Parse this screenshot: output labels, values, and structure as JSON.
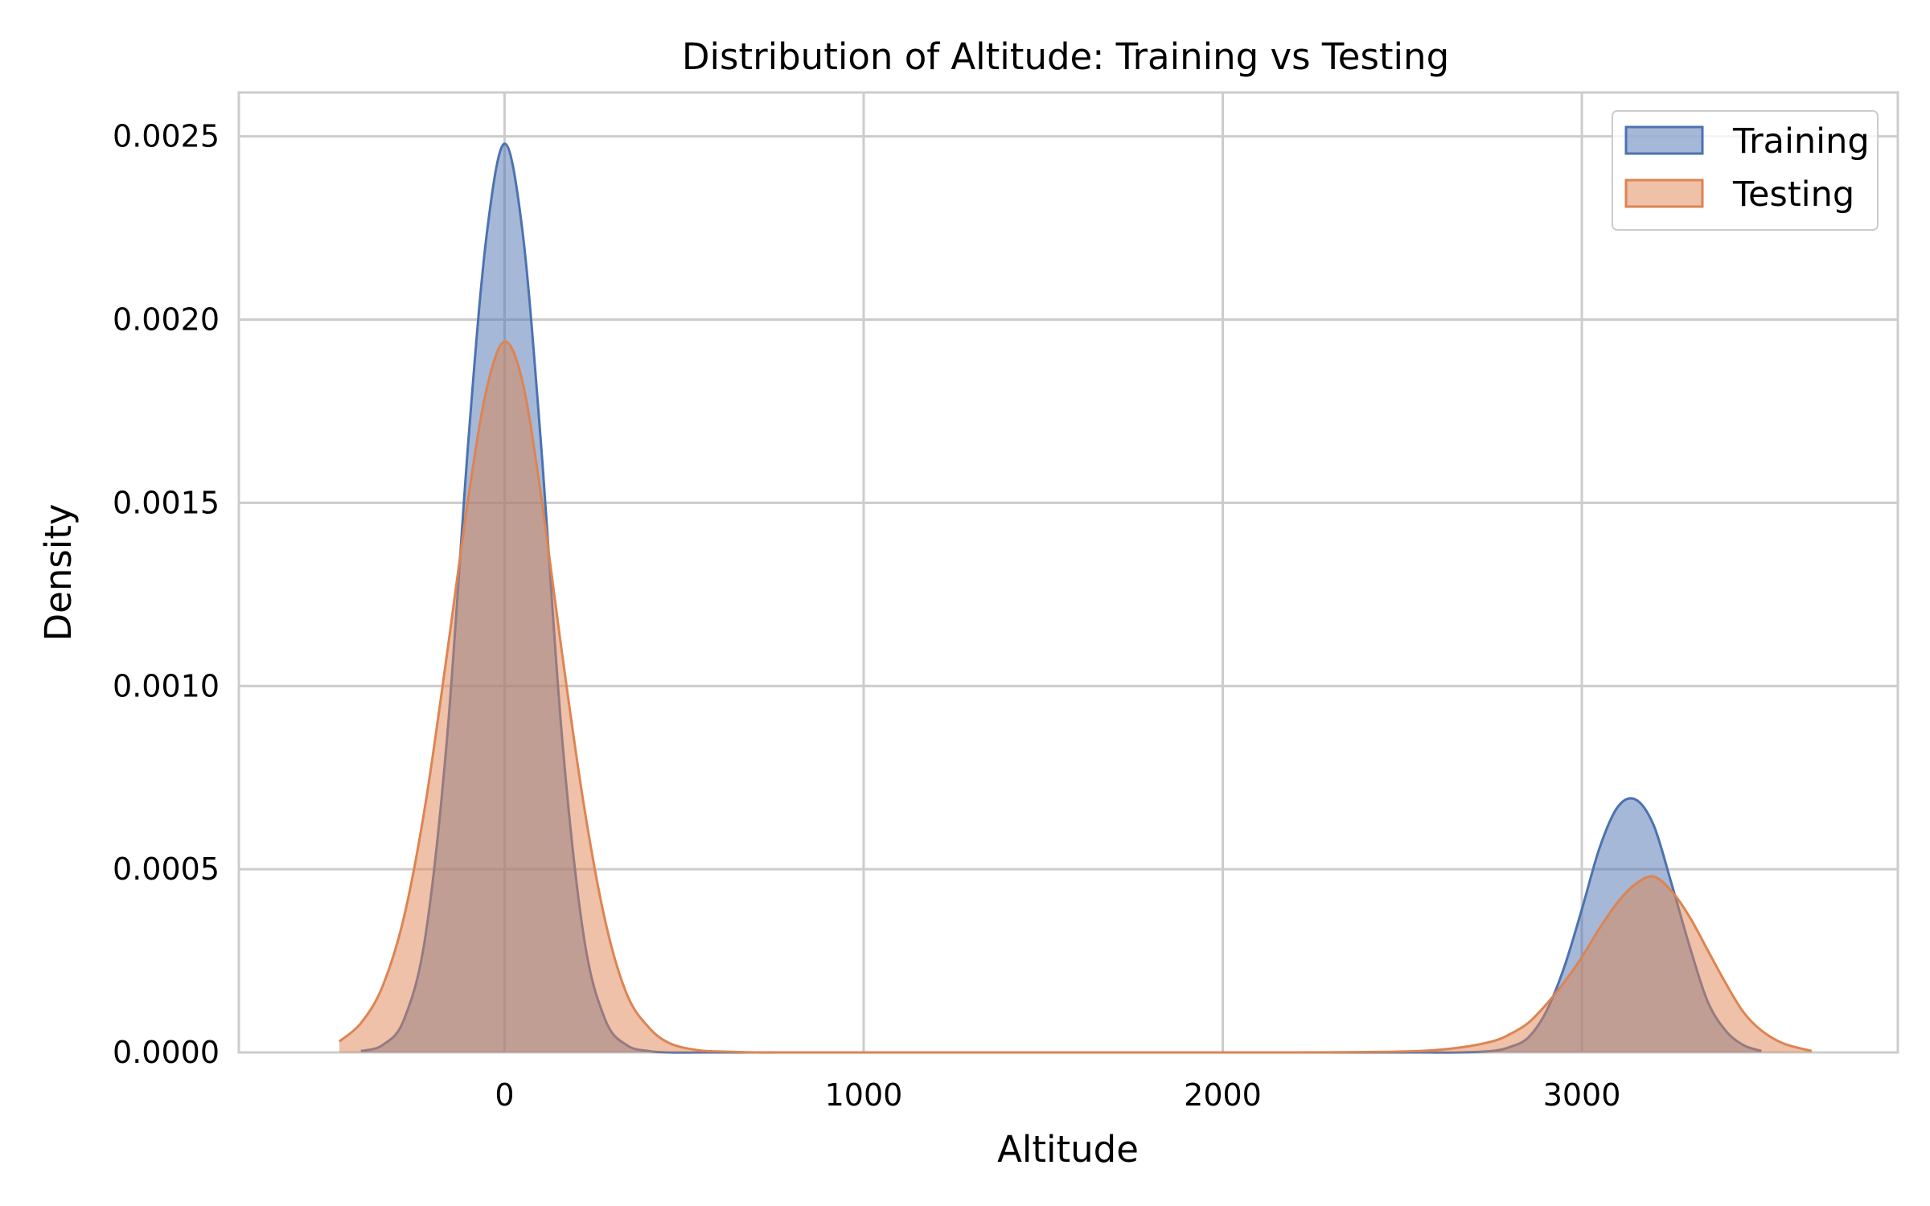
{
  "chart_data": {
    "type": "area",
    "title": "Distribution of Altitude: Training vs Testing",
    "xlabel": "Altitude",
    "ylabel": "Density",
    "xlim": [
      -740,
      3880
    ],
    "ylim": [
      0,
      0.00262
    ],
    "x_ticks": [
      {
        "value": 0,
        "label": "0"
      },
      {
        "value": 1000,
        "label": "1000"
      },
      {
        "value": 2000,
        "label": "2000"
      },
      {
        "value": 3000,
        "label": "3000"
      }
    ],
    "y_ticks": [
      {
        "value": 0,
        "label": "0.0000"
      },
      {
        "value": 0.0005,
        "label": "0.0005"
      },
      {
        "value": 0.001,
        "label": "0.0010"
      },
      {
        "value": 0.0015,
        "label": "0.0015"
      },
      {
        "value": 0.002,
        "label": "0.0020"
      },
      {
        "value": 0.0025,
        "label": "0.0025"
      }
    ],
    "grid": true,
    "legend_position": "top-right",
    "x": [
      -540,
      -460,
      -400,
      -340,
      -280,
      -220,
      -160,
      -100,
      -50,
      0,
      50,
      100,
      160,
      220,
      280,
      340,
      400,
      460,
      540,
      620,
      700,
      800,
      900,
      1000,
      1200,
      1400,
      1600,
      1800,
      2000,
      2200,
      2400,
      2550,
      2650,
      2750,
      2800,
      2850,
      2900,
      2950,
      3000,
      3050,
      3100,
      3150,
      3200,
      3250,
      3300,
      3350,
      3400,
      3450,
      3500,
      3560,
      3640
    ],
    "series": [
      {
        "name": "Training",
        "color": "#4C72B0",
        "x_range": [
          -410,
          3520
        ],
        "values": [
          0,
          0,
          4e-06,
          2e-05,
          9e-05,
          0.00032,
          0.00086,
          0.00168,
          0.00223,
          0.00248,
          0.00224,
          0.00168,
          0.00086,
          0.00032,
          9e-05,
          2e-05,
          4e-06,
          0,
          0,
          0,
          0,
          0,
          0,
          0,
          0,
          0,
          0,
          0,
          0,
          0,
          0,
          0,
          0,
          4e-06,
          1.5e-05,
          4e-05,
          0.00011,
          0.00023,
          0.00039,
          0.00056,
          0.00067,
          0.00069,
          0.00062,
          0.00046,
          0.00029,
          0.00014,
          6e-05,
          2e-05,
          4e-06,
          0,
          0
        ]
      },
      {
        "name": "Testing",
        "color": "#DD8452",
        "x_range": [
          -530,
          3640
        ],
        "values": [
          8e-06,
          3e-05,
          8e-05,
          0.00018,
          0.00037,
          0.00068,
          0.00109,
          0.00152,
          0.00181,
          0.00194,
          0.00183,
          0.00153,
          0.00109,
          0.00068,
          0.00036,
          0.00016,
          7e-05,
          2.5e-05,
          6e-06,
          2e-06,
          0,
          0,
          0,
          0,
          0,
          0,
          0,
          0,
          0,
          0,
          1e-06,
          4e-06,
          1.2e-05,
          3e-05,
          5e-05,
          8e-05,
          0.00013,
          0.00019,
          0.00026,
          0.00034,
          0.00041,
          0.00046,
          0.00048,
          0.00044,
          0.00037,
          0.00028,
          0.00019,
          0.00011,
          6e-05,
          2.5e-05,
          4e-06
        ]
      }
    ]
  }
}
